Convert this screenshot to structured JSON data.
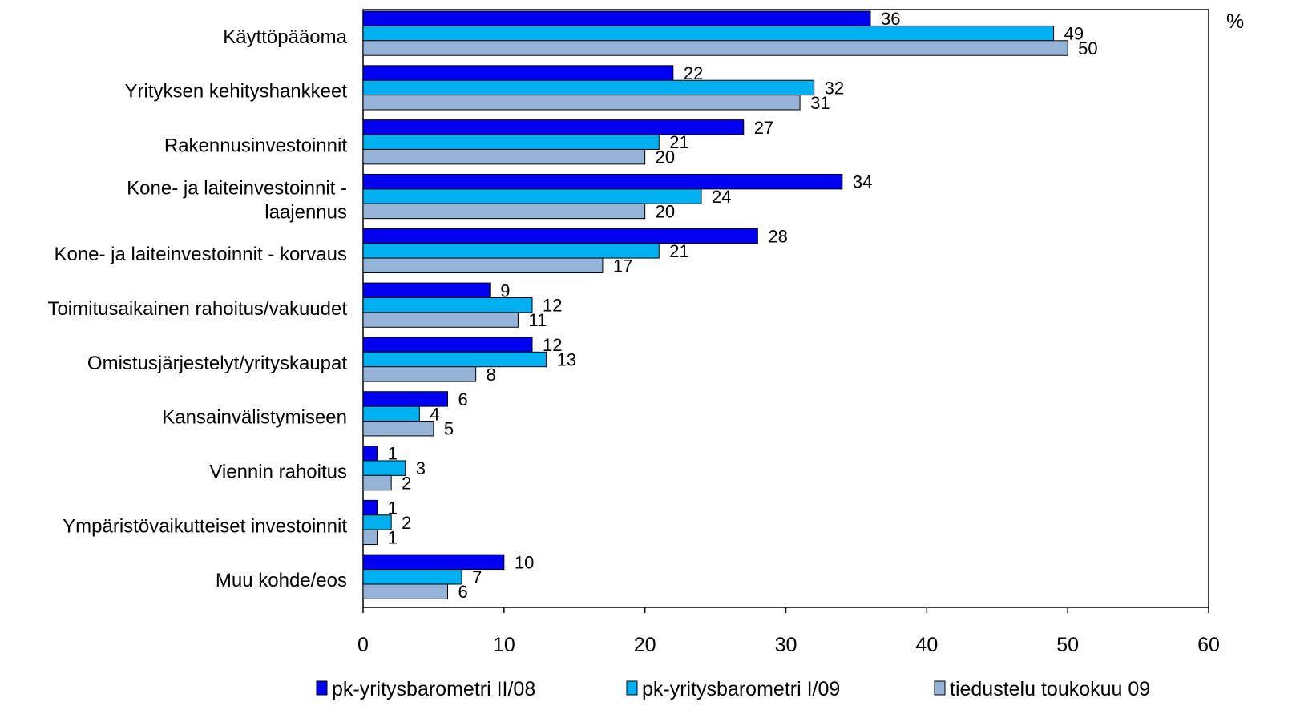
{
  "chart_data": {
    "type": "bar",
    "orientation": "horizontal",
    "unit_label": "%",
    "categories": [
      [
        "Käyttöpääoma"
      ],
      [
        "Yrityksen kehityshankkeet"
      ],
      [
        "Rakennusinvestoinnit"
      ],
      [
        "Kone- ja laiteinvestoinnit -",
        "laajennus"
      ],
      [
        "Kone- ja laiteinvestoinnit - korvaus"
      ],
      [
        "Toimitusaikainen rahoitus/vakuudet"
      ],
      [
        "Omistusjärjestelyt/yrityskaupat"
      ],
      [
        "Kansainvälistymiseen"
      ],
      [
        "Viennin rahoitus"
      ],
      [
        "Ympäristövaikutteiset investoinnit"
      ],
      [
        "Muu kohde/eos"
      ]
    ],
    "series": [
      {
        "name": "pk-yritysbarometri II/08",
        "color": "#0000f0",
        "values": [
          36,
          22,
          27,
          34,
          28,
          9,
          12,
          6,
          1,
          1,
          10
        ]
      },
      {
        "name": "pk-yritysbarometri I/09",
        "color": "#00b0f0",
        "values": [
          49,
          32,
          21,
          24,
          21,
          12,
          13,
          4,
          3,
          2,
          7
        ]
      },
      {
        "name": "tiedustelu toukokuu 09",
        "color": "#95b3d7",
        "values": [
          50,
          31,
          20,
          20,
          17,
          11,
          8,
          5,
          2,
          1,
          6
        ]
      }
    ],
    "xlim": [
      0,
      60
    ],
    "xticks": [
      0,
      10,
      20,
      30,
      40,
      50,
      60
    ],
    "grid": false,
    "legend_position": "bottom"
  }
}
